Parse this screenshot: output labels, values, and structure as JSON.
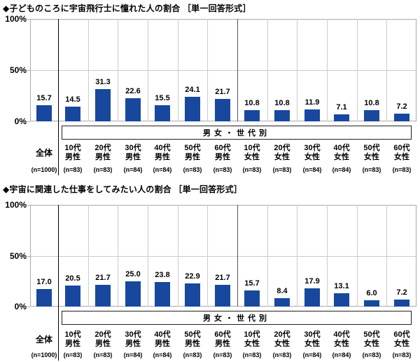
{
  "colors": {
    "bar": "#17489e",
    "grid": "#cccccc",
    "plot_border": "#aaaaaa",
    "separator_overall": "#000000",
    "separator_gender": "#555555",
    "text": "#000000",
    "background": "#ffffff"
  },
  "chart_data": [
    {
      "type": "bar",
      "title": "◆子どものころに宇宙飛行士に憧れた人の割合 ［単一回答形式］",
      "group_label": "男女・世代別",
      "categories": [
        "全体",
        "10代男性",
        "20代男性",
        "30代男性",
        "40代男性",
        "50代男性",
        "60代男性",
        "10代女性",
        "20代女性",
        "30代女性",
        "40代女性",
        "50代女性",
        "60代女性"
      ],
      "category_lines": [
        [
          "全体"
        ],
        [
          "10代",
          "男性"
        ],
        [
          "20代",
          "男性"
        ],
        [
          "30代",
          "男性"
        ],
        [
          "40代",
          "男性"
        ],
        [
          "50代",
          "男性"
        ],
        [
          "60代",
          "男性"
        ],
        [
          "10代",
          "女性"
        ],
        [
          "20代",
          "女性"
        ],
        [
          "30代",
          "女性"
        ],
        [
          "40代",
          "女性"
        ],
        [
          "50代",
          "女性"
        ],
        [
          "60代",
          "女性"
        ]
      ],
      "n_labels": [
        "(n=1000)",
        "(n=83)",
        "(n=83)",
        "(n=84)",
        "(n=84)",
        "(n=83)",
        "(n=83)",
        "(n=83)",
        "(n=83)",
        "(n=84)",
        "(n=84)",
        "(n=83)",
        "(n=83)"
      ],
      "values": [
        15.7,
        14.5,
        31.3,
        22.6,
        15.5,
        24.1,
        21.7,
        10.8,
        10.8,
        11.9,
        7.1,
        10.8,
        7.2
      ],
      "value_labels": [
        "15.7",
        "14.5",
        "31.3",
        "22.6",
        "15.5",
        "24.1",
        "21.7",
        "10.8",
        "10.8",
        "11.9",
        "7.1",
        "10.8",
        "7.2"
      ],
      "ylim": [
        0,
        100
      ],
      "yticks": [
        "100%",
        "50%",
        "0%"
      ],
      "grid": true,
      "legend": "none"
    },
    {
      "type": "bar",
      "title": "◆宇宙に関連した仕事をしてみたい人の割合 ［単一回答形式］",
      "group_label": "男女・世代別",
      "categories": [
        "全体",
        "10代男性",
        "20代男性",
        "30代男性",
        "40代男性",
        "50代男性",
        "60代男性",
        "10代女性",
        "20代女性",
        "30代女性",
        "40代女性",
        "50代女性",
        "60代女性"
      ],
      "category_lines": [
        [
          "全体"
        ],
        [
          "10代",
          "男性"
        ],
        [
          "20代",
          "男性"
        ],
        [
          "30代",
          "男性"
        ],
        [
          "40代",
          "男性"
        ],
        [
          "50代",
          "男性"
        ],
        [
          "60代",
          "男性"
        ],
        [
          "10代",
          "女性"
        ],
        [
          "20代",
          "女性"
        ],
        [
          "30代",
          "女性"
        ],
        [
          "40代",
          "女性"
        ],
        [
          "50代",
          "女性"
        ],
        [
          "60代",
          "女性"
        ]
      ],
      "n_labels": [
        "(n=1000)",
        "(n=83)",
        "(n=83)",
        "(n=84)",
        "(n=84)",
        "(n=83)",
        "(n=83)",
        "(n=83)",
        "(n=83)",
        "(n=84)",
        "(n=84)",
        "(n=83)",
        "(n=83)"
      ],
      "values": [
        17.0,
        20.5,
        21.7,
        25.0,
        23.8,
        22.9,
        21.7,
        15.7,
        8.4,
        17.9,
        13.1,
        6.0,
        7.2
      ],
      "value_labels": [
        "17.0",
        "20.5",
        "21.7",
        "25.0",
        "23.8",
        "22.9",
        "21.7",
        "15.7",
        "8.4",
        "17.9",
        "13.1",
        "6.0",
        "7.2"
      ],
      "ylim": [
        0,
        100
      ],
      "yticks": [
        "100%",
        "50%",
        "0%"
      ],
      "grid": true,
      "legend": "none"
    }
  ]
}
